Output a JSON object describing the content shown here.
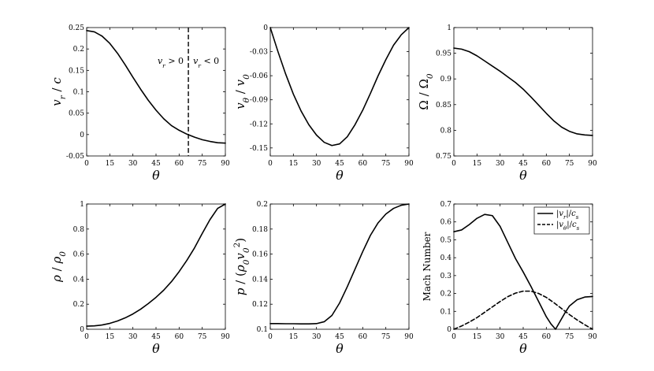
{
  "chart_data": [
    {
      "type": "line",
      "ylabel": "v_r / c",
      "xlabel": "θ",
      "xlim": [
        0,
        90
      ],
      "ylim": [
        -0.05,
        0.25
      ],
      "xticks": [
        "0",
        "15",
        "30",
        "45",
        "60",
        "75",
        "90"
      ],
      "yticks": [
        "-0.05",
        "0",
        "0.05",
        "0.1",
        "0.15",
        "0.2",
        "0.25"
      ],
      "series": [
        {
          "style": "solid",
          "x": [
            0,
            5,
            10,
            15,
            20,
            25,
            30,
            35,
            40,
            45,
            50,
            55,
            60,
            65,
            70,
            75,
            80,
            85,
            90
          ],
          "y": [
            0.243,
            0.24,
            0.23,
            0.213,
            0.19,
            0.163,
            0.134,
            0.106,
            0.08,
            0.057,
            0.037,
            0.021,
            0.01,
            0.001,
            -0.006,
            -0.012,
            -0.016,
            -0.019,
            -0.02
          ]
        }
      ],
      "vline": {
        "x": 66,
        "style": "dashed"
      },
      "annotations": [
        "v_r > 0",
        "v_r < 0"
      ]
    },
    {
      "type": "line",
      "ylabel": "v_θ / v_0",
      "xlabel": "θ",
      "xlim": [
        0,
        90
      ],
      "ylim": [
        -0.16,
        0
      ],
      "xticks": [
        "0",
        "15",
        "30",
        "45",
        "60",
        "75",
        "90"
      ],
      "yticks": [
        "-0.15",
        "-0.12",
        "-0.09",
        "-0.06",
        "-0.03",
        "0"
      ],
      "series": [
        {
          "style": "solid",
          "x": [
            0,
            5,
            10,
            15,
            20,
            25,
            30,
            35,
            40,
            45,
            50,
            55,
            60,
            65,
            70,
            75,
            80,
            85,
            90
          ],
          "y": [
            0,
            -0.03,
            -0.058,
            -0.083,
            -0.104,
            -0.121,
            -0.134,
            -0.143,
            -0.147,
            -0.145,
            -0.136,
            -0.121,
            -0.103,
            -0.082,
            -0.06,
            -0.04,
            -0.022,
            -0.009,
            0
          ]
        }
      ]
    },
    {
      "type": "line",
      "ylabel": "Ω / Ω_0",
      "xlabel": "θ",
      "xlim": [
        0,
        90
      ],
      "ylim": [
        0.75,
        1
      ],
      "xticks": [
        "0",
        "15",
        "30",
        "45",
        "60",
        "75",
        "90"
      ],
      "yticks": [
        "0.75",
        "0.8",
        "0.85",
        "0.9",
        "0.95",
        "1"
      ],
      "series": [
        {
          "style": "solid",
          "x": [
            0,
            5,
            10,
            15,
            20,
            25,
            30,
            35,
            40,
            45,
            50,
            55,
            60,
            65,
            70,
            75,
            80,
            85,
            90
          ],
          "y": [
            0.96,
            0.958,
            0.953,
            0.945,
            0.935,
            0.925,
            0.915,
            0.904,
            0.893,
            0.88,
            0.865,
            0.849,
            0.833,
            0.818,
            0.806,
            0.798,
            0.793,
            0.791,
            0.79
          ]
        }
      ]
    },
    {
      "type": "line",
      "ylabel": "ρ / ρ_0",
      "xlabel": "θ",
      "xlim": [
        0,
        90
      ],
      "ylim": [
        0,
        1
      ],
      "xticks": [
        "0",
        "15",
        "30",
        "45",
        "60",
        "75",
        "90"
      ],
      "yticks": [
        "0",
        "0.2",
        "0.4",
        "0.6",
        "0.8",
        "1"
      ],
      "series": [
        {
          "style": "solid",
          "x": [
            0,
            5,
            10,
            15,
            20,
            25,
            30,
            35,
            40,
            45,
            50,
            55,
            60,
            65,
            70,
            75,
            80,
            85,
            90
          ],
          "y": [
            0.025,
            0.027,
            0.034,
            0.047,
            0.066,
            0.091,
            0.122,
            0.16,
            0.205,
            0.255,
            0.312,
            0.38,
            0.46,
            0.55,
            0.65,
            0.765,
            0.875,
            0.965,
            1.0
          ]
        }
      ]
    },
    {
      "type": "line",
      "ylabel": "p / (ρ_0 v_0^2)",
      "xlabel": "θ",
      "xlim": [
        0,
        90
      ],
      "ylim": [
        0.1,
        0.2
      ],
      "xticks": [
        "0",
        "15",
        "30",
        "45",
        "60",
        "75",
        "90"
      ],
      "yticks": [
        "0.1",
        "0.12",
        "0.14",
        "0.16",
        "0.18",
        "0.2"
      ],
      "series": [
        {
          "style": "solid",
          "x": [
            0,
            5,
            10,
            15,
            20,
            25,
            30,
            35,
            40,
            45,
            50,
            55,
            60,
            65,
            70,
            75,
            80,
            85,
            90
          ],
          "y": [
            0.1045,
            0.1045,
            0.1044,
            0.1044,
            0.1043,
            0.1043,
            0.1045,
            0.106,
            0.111,
            0.121,
            0.134,
            0.148,
            0.162,
            0.175,
            0.185,
            0.192,
            0.1965,
            0.199,
            0.2
          ]
        }
      ]
    },
    {
      "type": "line",
      "ylabel": "Mach Number",
      "xlabel": "θ",
      "xlim": [
        0,
        90
      ],
      "ylim": [
        0,
        0.7
      ],
      "xticks": [
        "0",
        "15",
        "30",
        "45",
        "60",
        "75",
        "90"
      ],
      "yticks": [
        "0",
        "0.1",
        "0.2",
        "0.3",
        "0.4",
        "0.5",
        "0.6",
        "0.7"
      ],
      "legend": {
        "position": "top-right"
      },
      "series": [
        {
          "name": "|v_r| / c_s",
          "style": "solid",
          "x": [
            0,
            5,
            10,
            15,
            20,
            25,
            30,
            35,
            40,
            45,
            50,
            55,
            60,
            63,
            66,
            69,
            72,
            75,
            80,
            85,
            90
          ],
          "y": [
            0.545,
            0.555,
            0.585,
            0.62,
            0.642,
            0.635,
            0.575,
            0.485,
            0.395,
            0.32,
            0.24,
            0.155,
            0.07,
            0.03,
            0.0,
            0.045,
            0.09,
            0.13,
            0.165,
            0.18,
            0.183
          ]
        },
        {
          "name": "|v_θ| / c_s",
          "style": "dashed",
          "x": [
            0,
            5,
            10,
            15,
            20,
            25,
            30,
            35,
            40,
            45,
            50,
            55,
            60,
            65,
            70,
            75,
            80,
            85,
            90
          ],
          "y": [
            0.0,
            0.018,
            0.04,
            0.065,
            0.095,
            0.125,
            0.155,
            0.182,
            0.202,
            0.213,
            0.213,
            0.2,
            0.178,
            0.148,
            0.115,
            0.082,
            0.052,
            0.025,
            0.0
          ]
        }
      ]
    }
  ]
}
